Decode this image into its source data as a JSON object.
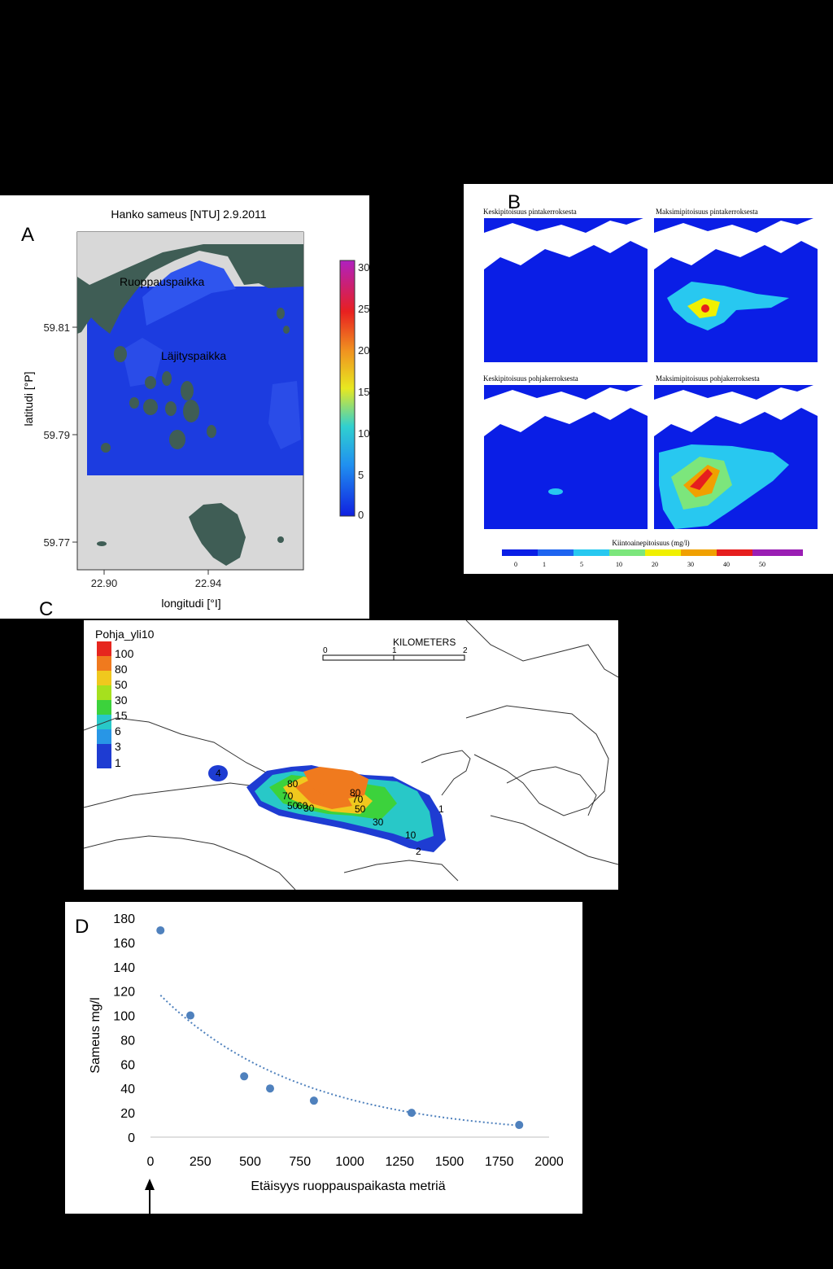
{
  "panelA": {
    "label": "A",
    "title": "Hanko sameus [NTU] 2.9.2011",
    "ylabel": "latitudi [°P]",
    "xlabel": "longitudi [°I]",
    "yticks": [
      "59.81",
      "59.79",
      "59.77"
    ],
    "xticks": [
      "22.90",
      "22.94"
    ],
    "place1": "Ruoppauspaikka",
    "place2": "Läjityspaikka",
    "colorbar_ticks": [
      "30",
      "25",
      "20",
      "15",
      "10",
      "5",
      "0"
    ],
    "colors": {
      "water": "#1c3ce0",
      "land": "#3f5d55",
      "outside": "#d8d8d8"
    }
  },
  "panelB": {
    "label": "B",
    "sub1": "Keskipitoisuus pintakerroksesta",
    "sub2": "Maksimipitoisuus pintakerroksesta",
    "sub3": "Keskipitoisuus pohjakerroksesta",
    "sub4": "Maksimipitoisuus pohjakerroksesta",
    "legend_title": "Kiintoainepitoisuus (mg/l)",
    "legend_ticks": [
      "0",
      "1",
      "5",
      "10",
      "20",
      "30",
      "40",
      "50"
    ],
    "legend_colors": [
      "#0a1ee6",
      "#1e64f0",
      "#28c8f0",
      "#7ce67c",
      "#f0f000",
      "#f0a000",
      "#e61e1e",
      "#9a1eb4"
    ]
  },
  "panelC": {
    "label": "C",
    "legend_title": "Pohja_yli10",
    "legend_items": [
      "100",
      "80",
      "50",
      "30",
      "15",
      "6",
      "3",
      "1"
    ],
    "legend_colors": [
      "#e6261e",
      "#f07a1e",
      "#f0c81e",
      "#a6e01e",
      "#3cd23c",
      "#28c8c8",
      "#2896e6",
      "#1e3cd2"
    ],
    "scale_label": "KILOMETERS",
    "scale_ticks": [
      "0",
      "1",
      "2"
    ],
    "contour_labels": [
      "80",
      "70",
      "50",
      "60",
      "30",
      "80",
      "70",
      "50",
      "30",
      "10",
      "1",
      "2",
      "4"
    ]
  },
  "panelD": {
    "label": "D",
    "note_arrow": "dredging site marker"
  },
  "chart_data": {
    "type": "scatter",
    "title": "",
    "xlabel": "Etäisyys ruoppauspaikasta metriä",
    "ylabel": "Sameus mg/l",
    "xlim": [
      0,
      2000
    ],
    "ylim": [
      0,
      180
    ],
    "xticks": [
      "0",
      "250",
      "500",
      "750",
      "1000",
      "1250",
      "1500",
      "1750",
      "2000"
    ],
    "yticks": [
      "0",
      "20",
      "40",
      "60",
      "80",
      "100",
      "120",
      "140",
      "160",
      "180"
    ],
    "points": [
      {
        "x": 50,
        "y": 170
      },
      {
        "x": 200,
        "y": 100
      },
      {
        "x": 470,
        "y": 50
      },
      {
        "x": 600,
        "y": 40
      },
      {
        "x": 820,
        "y": 30
      },
      {
        "x": 1310,
        "y": 20
      },
      {
        "x": 1850,
        "y": 10
      }
    ],
    "trendline": {
      "type": "exponential",
      "a": 125,
      "b": 0.00139
    },
    "marker_color": "#4f81bd"
  }
}
